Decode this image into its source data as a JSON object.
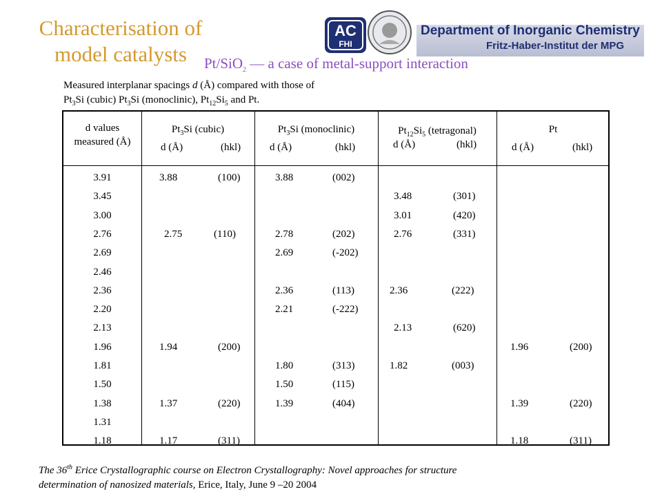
{
  "header": {
    "title_line1": "Characterisation of",
    "title_line2": "model catalysts",
    "subtitle_pre": "Pt/SiO",
    "subtitle_sub": "2",
    "subtitle_post": " — a case of metal-support interaction",
    "logo_ac": "AC",
    "logo_fhi": "FHI",
    "department": "Department of Inorganic Chemistry",
    "institute": "Fritz-Haber-Institut der MPG"
  },
  "caption": {
    "line1": "Measured interplanar spacings d (Å) compared with those of",
    "line2": "Pt3Si (cubic) Pt3Si (monoclinic), Pt12Si5 and Pt."
  },
  "table": {
    "col0_header": [
      "d values",
      "measured (Å)"
    ],
    "groups": [
      {
        "name": "Pt3Si (cubic)",
        "sub1": "d (Å)",
        "sub2": "(hkl)"
      },
      {
        "name": "Pt3Si (monoclinic)",
        "sub1": "d (Å)",
        "sub2": "(hkl)"
      },
      {
        "name": "Pt12Si5 (tetragonal)",
        "sub1": "d (Å)",
        "sub2": "(hkl)"
      },
      {
        "name": "Pt",
        "sub1": "d (Å)",
        "sub2": "(hkl)"
      }
    ],
    "rows": [
      {
        "measured": "3.91",
        "cubic": [
          "3.88",
          "(100)"
        ],
        "mono": [
          "3.88",
          "(002)"
        ],
        "tetra": null,
        "pt": null
      },
      {
        "measured": "3.45",
        "cubic": null,
        "mono": null,
        "tetra": [
          "3.48",
          "(301)"
        ],
        "pt": null
      },
      {
        "measured": "3.00",
        "cubic": null,
        "mono": null,
        "tetra": [
          "3.01",
          "(420)"
        ],
        "pt": null
      },
      {
        "measured": "2.76",
        "cubic": [
          "2.75",
          "(110)"
        ],
        "mono": [
          "2.78",
          "(202)"
        ],
        "tetra": [
          "2.76",
          "(331)"
        ],
        "pt": null
      },
      {
        "measured": "2.69",
        "cubic": null,
        "mono": [
          "2.69",
          "(-202)"
        ],
        "tetra": null,
        "pt": null
      },
      {
        "measured": "2.46",
        "cubic": null,
        "mono": null,
        "tetra": null,
        "pt": null
      },
      {
        "measured": "2.36",
        "cubic": null,
        "mono": [
          "2.36",
          "(113)"
        ],
        "tetra": [
          "2.36",
          "(222)"
        ],
        "pt": null
      },
      {
        "measured": "2.20",
        "cubic": null,
        "mono": [
          "2.21",
          "(-222)"
        ],
        "tetra": null,
        "pt": null
      },
      {
        "measured": "2.13",
        "cubic": null,
        "mono": null,
        "tetra": [
          "2.13",
          "(620)"
        ],
        "pt": null
      },
      {
        "measured": "1.96",
        "cubic": [
          "1.94",
          "(200)"
        ],
        "mono": null,
        "tetra": null,
        "pt": [
          "1.96",
          "(200)"
        ]
      },
      {
        "measured": "1.81",
        "cubic": null,
        "mono": [
          "1.80",
          "(313)"
        ],
        "tetra": [
          "1.82",
          "(003)"
        ],
        "pt": null
      },
      {
        "measured": "1.50",
        "cubic": null,
        "mono": [
          "1.50",
          "(115)"
        ],
        "tetra": null,
        "pt": null
      },
      {
        "measured": "1.38",
        "cubic": [
          "1.37",
          "(220)"
        ],
        "mono": [
          "1.39",
          "(404)"
        ],
        "tetra": null,
        "pt": [
          "1.39",
          "(220)"
        ]
      },
      {
        "measured": "1.31",
        "cubic": null,
        "mono": null,
        "tetra": null,
        "pt": null
      },
      {
        "measured": "1.18",
        "cubic": [
          "1.17",
          "(311)"
        ],
        "mono": null,
        "tetra": null,
        "pt": [
          "1.18",
          "(311)"
        ]
      }
    ]
  },
  "footer": {
    "italic_a": "The 36",
    "italic_sup": "th",
    "italic_b": " Erice Crystallographic course on Electron Crystallography: Novel approaches for structure",
    "italic_c": "determination of nanosized materials,",
    "normal": " Erice, Italy, June 9 –20 2004"
  },
  "colors": {
    "title": "#d39a2e",
    "subtitle": "#8a4fbf",
    "department": "#1f2f73"
  }
}
